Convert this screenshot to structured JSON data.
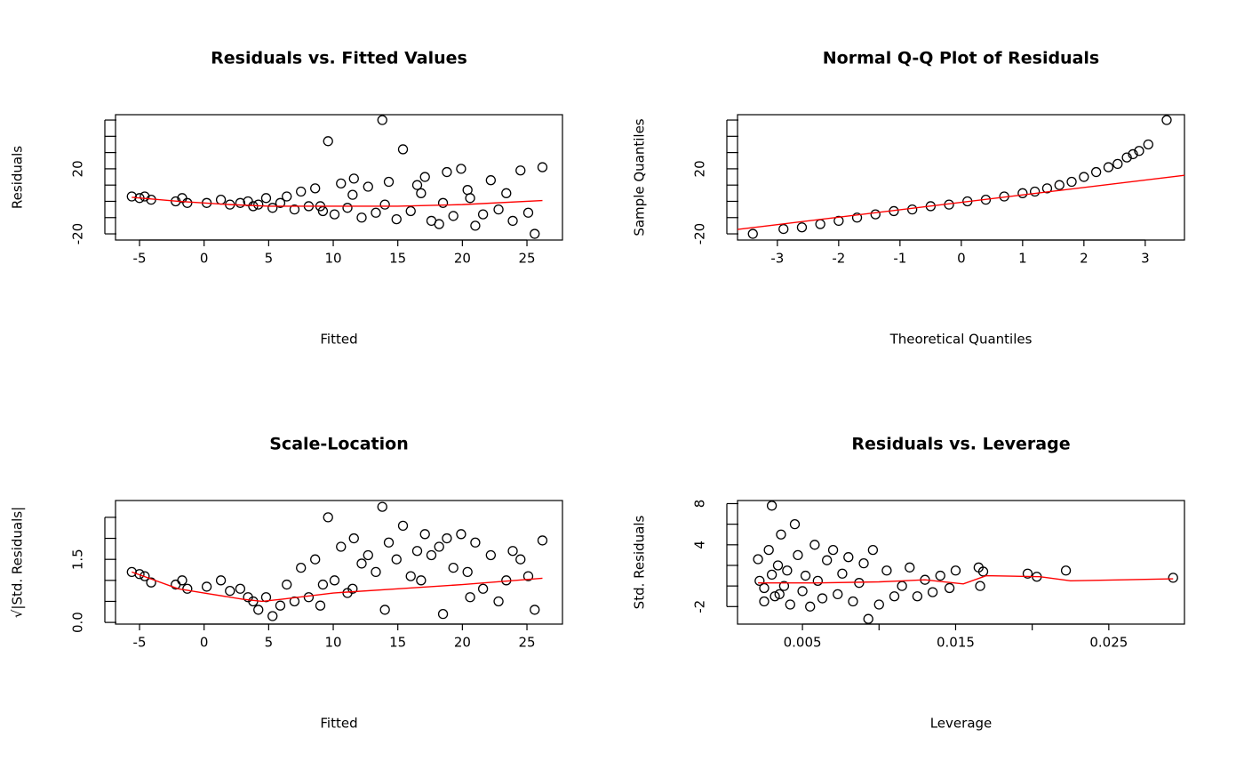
{
  "chart_data": [
    {
      "type": "scatter",
      "title": "Residuals vs. Fitted Values",
      "xlabel": "Fitted",
      "ylabel": "Residuals",
      "xlim": [
        -6.86,
        27.75
      ],
      "ylim": [
        -23.8,
        53.3
      ],
      "xticks": [
        -5,
        0,
        5,
        10,
        15,
        20,
        25
      ],
      "yticks": [
        -20,
        {
          "value": -10,
          "label": null
        },
        {
          "value": 0,
          "label": null
        },
        {
          "value": 10,
          "label": null
        },
        20,
        {
          "value": 30,
          "label": null
        },
        {
          "value": 40,
          "label": null
        },
        {
          "value": 50,
          "label": null
        }
      ],
      "point_color": "#000000",
      "x": [
        -5.6,
        -5.0,
        -4.6,
        -4.1,
        -2.2,
        -1.7,
        -1.3,
        0.2,
        1.3,
        2.0,
        2.8,
        3.4,
        3.8,
        4.2,
        4.8,
        5.3,
        5.9,
        6.4,
        7.0,
        7.5,
        8.1,
        8.6,
        9.2,
        9.6,
        10.1,
        10.6,
        11.1,
        11.6,
        12.2,
        12.7,
        13.3,
        13.8,
        14.3,
        14.9,
        15.4,
        16.0,
        16.5,
        17.1,
        17.6,
        18.2,
        18.8,
        19.3,
        19.9,
        20.4,
        21.0,
        21.6,
        22.2,
        22.8,
        23.4,
        23.9,
        24.5,
        25.1,
        25.6,
        26.2,
        9.0,
        11.5,
        14.0,
        16.8,
        18.5,
        20.6
      ],
      "y": [
        3,
        2,
        3,
        1,
        0,
        2,
        -1,
        -1,
        1,
        -2,
        -1,
        0,
        -3,
        -2,
        2,
        -4,
        -1,
        3,
        -5,
        6,
        -3,
        8,
        -6,
        37,
        -8,
        11,
        -4,
        14,
        -10,
        9,
        -7,
        50,
        12,
        -11,
        32,
        -6,
        10,
        15,
        -12,
        -14,
        18,
        -9,
        20,
        7,
        -15,
        -8,
        13,
        -5,
        5,
        -12,
        19,
        -7,
        -20,
        21,
        -3,
        4,
        -2,
        5,
        -1,
        2
      ],
      "line": {
        "color": "#ff0000",
        "x": [
          -5.6,
          -2,
          2,
          5,
          10,
          15,
          20,
          26.2
        ],
        "y": [
          2.5,
          0,
          -2,
          -3,
          -3,
          -3,
          -2,
          0.5
        ]
      }
    },
    {
      "type": "scatter",
      "title": "Normal Q-Q Plot of Residuals",
      "xlabel": "Theoretical Quantiles",
      "ylabel": "Sample Quantiles",
      "xlim": [
        -3.65,
        3.64
      ],
      "ylim": [
        -23.8,
        53.3
      ],
      "xticks": [
        -3,
        -2,
        -1,
        0,
        1,
        2,
        3
      ],
      "yticks": [
        -20,
        {
          "value": -10,
          "label": null
        },
        {
          "value": 0,
          "label": null
        },
        {
          "value": 10,
          "label": null
        },
        20,
        {
          "value": 30,
          "label": null
        },
        {
          "value": 40,
          "label": null
        },
        {
          "value": 50,
          "label": null
        }
      ],
      "point_color": "#000000",
      "x": [
        -3.4,
        -2.9,
        -2.6,
        -2.3,
        -2.0,
        -1.7,
        -1.4,
        -1.1,
        -0.8,
        -0.5,
        -0.2,
        0.1,
        0.4,
        0.7,
        1.0,
        1.2,
        1.4,
        1.6,
        1.8,
        2.0,
        2.2,
        2.4,
        2.55,
        2.7,
        2.8,
        2.9,
        3.05,
        3.35
      ],
      "y": [
        -20,
        -17,
        -16,
        -14,
        -12,
        -10,
        -8,
        -6,
        -5,
        -3,
        -2,
        0,
        1,
        3,
        5,
        6,
        8,
        10,
        12,
        15,
        18,
        21,
        23,
        27,
        29,
        31,
        35,
        50
      ],
      "line": {
        "color": "#ff0000",
        "x": [
          -3.65,
          3.64
        ],
        "y": [
          -17.3,
          16
        ]
      }
    },
    {
      "type": "scatter",
      "title": "Scale-Location",
      "xlabel": "Fitted",
      "ylabel": "√|Std. Residuals|",
      "xlim": [
        -6.86,
        27.75
      ],
      "ylim": [
        -0.04,
        2.9
      ],
      "xticks": [
        -5,
        0,
        5,
        10,
        15,
        20,
        25
      ],
      "yticks": [
        {
          "value": 0,
          "label": "0.0"
        },
        {
          "value": 0.5,
          "label": null
        },
        {
          "value": 1,
          "label": null
        },
        1.5,
        {
          "value": 2,
          "label": null
        },
        {
          "value": 2.5,
          "label": null
        }
      ],
      "point_color": "#000000",
      "x": [
        -5.6,
        -5.0,
        -4.6,
        -4.1,
        -2.2,
        -1.7,
        -1.3,
        0.2,
        1.3,
        2.0,
        2.8,
        3.4,
        3.8,
        4.2,
        4.8,
        5.3,
        5.9,
        6.4,
        7.0,
        7.5,
        8.1,
        8.6,
        9.2,
        9.6,
        10.1,
        10.6,
        11.1,
        11.6,
        12.2,
        12.7,
        13.3,
        13.8,
        14.3,
        14.9,
        15.4,
        16.0,
        16.5,
        17.1,
        17.6,
        18.2,
        18.8,
        19.3,
        19.9,
        20.4,
        21.0,
        21.6,
        22.2,
        22.8,
        23.4,
        23.9,
        24.5,
        25.1,
        25.6,
        26.2,
        9.0,
        11.5,
        14.0,
        16.8,
        18.5,
        20.6
      ],
      "y": [
        1.2,
        1.15,
        1.1,
        0.95,
        0.9,
        1.0,
        0.8,
        0.85,
        1.0,
        0.75,
        0.8,
        0.6,
        0.5,
        0.3,
        0.6,
        0.15,
        0.4,
        0.9,
        0.5,
        1.3,
        0.6,
        1.5,
        0.9,
        2.5,
        1.0,
        1.8,
        0.7,
        2.0,
        1.4,
        1.6,
        1.2,
        2.75,
        1.9,
        1.5,
        2.3,
        1.1,
        1.7,
        2.1,
        1.6,
        1.8,
        2.0,
        1.3,
        2.1,
        1.2,
        1.9,
        0.8,
        1.6,
        0.5,
        1.0,
        1.7,
        1.5,
        1.1,
        0.3,
        1.95,
        0.4,
        0.8,
        0.3,
        1.0,
        0.2,
        0.6
      ],
      "line": {
        "color": "#ff0000",
        "x": [
          -5.6,
          -2,
          0,
          3,
          4.5,
          6,
          10,
          15,
          20,
          26.2
        ],
        "y": [
          1.2,
          0.8,
          0.7,
          0.55,
          0.5,
          0.55,
          0.7,
          0.8,
          0.9,
          1.05
        ]
      }
    },
    {
      "type": "scatter",
      "title": "Residuals vs. Leverage",
      "xlabel": "Leverage",
      "ylabel": "Std. Residuals",
      "xlim": [
        0.00076,
        0.02994
      ],
      "ylim": [
        -3.7,
        8.3
      ],
      "xticks": [
        0.005,
        {
          "value": 0.01,
          "label": null
        },
        0.015,
        {
          "value": 0.02,
          "label": null
        },
        0.025
      ],
      "yticks": [
        -2,
        {
          "value": 0,
          "label": null
        },
        {
          "value": 2,
          "label": null
        },
        4,
        {
          "value": 6,
          "label": null
        },
        8
      ],
      "point_color": "#000000",
      "x": [
        0.0022,
        0.0025,
        0.0028,
        0.003,
        0.0032,
        0.0034,
        0.0036,
        0.0038,
        0.004,
        0.0042,
        0.0045,
        0.0047,
        0.005,
        0.0052,
        0.0055,
        0.0058,
        0.006,
        0.0063,
        0.0066,
        0.007,
        0.0073,
        0.0076,
        0.008,
        0.0083,
        0.0087,
        0.009,
        0.0093,
        0.0096,
        0.01,
        0.0105,
        0.011,
        0.0115,
        0.012,
        0.0125,
        0.013,
        0.0135,
        0.014,
        0.0146,
        0.015,
        0.0165,
        0.0166,
        0.0168,
        0.0197,
        0.0203,
        0.0222,
        0.0292,
        0.0025,
        0.003,
        0.0035,
        0.0021
      ],
      "y": [
        0.5,
        -1.5,
        3.5,
        7.8,
        -1,
        2,
        5,
        0,
        1.5,
        -1.8,
        6,
        3,
        -0.5,
        1,
        -2,
        4,
        0.5,
        -1.2,
        2.5,
        3.5,
        -0.8,
        1.2,
        2.8,
        -1.5,
        0.3,
        2.2,
        -3.2,
        3.5,
        -1.8,
        1.5,
        -1,
        0,
        1.8,
        -1,
        0.6,
        -0.6,
        1,
        -0.2,
        1.5,
        1.8,
        0,
        1.4,
        1.2,
        0.9,
        1.5,
        0.8,
        -0.2,
        1.1,
        -0.8,
        2.6
      ],
      "line": {
        "color": "#ff0000",
        "x": [
          0.0021,
          0.006,
          0.01,
          0.013,
          0.0155,
          0.017,
          0.0205,
          0.0225,
          0.0292
        ],
        "y": [
          0.3,
          0.3,
          0.4,
          0.6,
          0.2,
          1,
          0.9,
          0.5,
          0.7
        ]
      }
    }
  ]
}
